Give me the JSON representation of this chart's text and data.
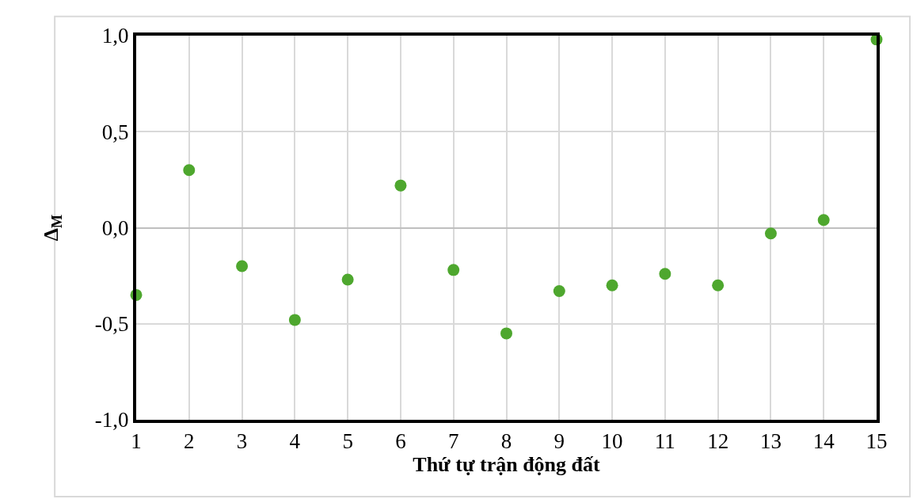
{
  "chart_data": {
    "type": "scatter",
    "xlabel": "Thứ tự trận động đất",
    "ylabel": "Δ$_{M}$",
    "x": [
      1,
      2,
      3,
      4,
      5,
      6,
      7,
      8,
      9,
      10,
      11,
      12,
      13,
      14,
      15
    ],
    "series": [
      {
        "color": "#4ea72e",
        "values": [
          -0.35,
          0.3,
          -0.2,
          -0.48,
          -0.27,
          0.22,
          -0.22,
          -0.55,
          -0.33,
          -0.3,
          -0.24,
          -0.3,
          -0.03,
          0.04,
          0.98
        ]
      }
    ],
    "xlim": [
      1,
      15
    ],
    "xticks": [
      1,
      2,
      3,
      4,
      5,
      6,
      7,
      8,
      9,
      10,
      11,
      12,
      13,
      14,
      15
    ],
    "ylim": [
      -1.0,
      1.0
    ],
    "yticks": [
      {
        "value": -1.0,
        "label": "-1,0"
      },
      {
        "value": -0.5,
        "label": "-0,5"
      },
      {
        "value": 0.0,
        "label": "0,0"
      },
      {
        "value": 0.5,
        "label": "0,5"
      },
      {
        "value": 1.0,
        "label": "1,0"
      }
    ],
    "grid": true,
    "marker": "circle"
  }
}
